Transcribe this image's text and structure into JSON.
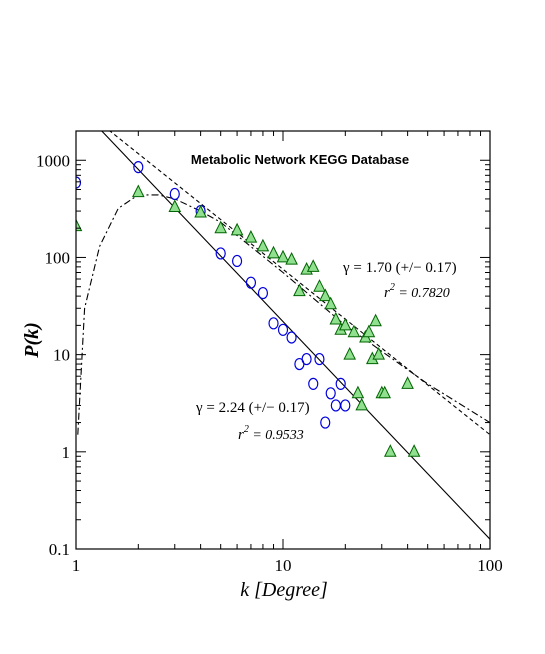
{
  "chart_data": {
    "type": "scatter",
    "title": "Metabolic Network KEGG Database",
    "xlabel": "k [Degree]",
    "ylabel": "P(k)",
    "xscale": "log",
    "yscale": "log",
    "xlim": [
      1,
      100
    ],
    "ylim": [
      0.1,
      2000
    ],
    "x_ticks": [
      {
        "value": 1,
        "label": "1"
      },
      {
        "value": 10,
        "label": "10"
      },
      {
        "value": 100,
        "label": "100"
      }
    ],
    "y_ticks": [
      {
        "value": 0.1,
        "label": "0.1"
      },
      {
        "value": 1,
        "label": "1"
      },
      {
        "value": 10,
        "label": "10"
      },
      {
        "value": 100,
        "label": "100"
      },
      {
        "value": 1000,
        "label": "1000"
      }
    ],
    "grid": false,
    "colors": {
      "circles": "#0000dd",
      "triangles_fill": "#90e090",
      "triangles_stroke": "#006400",
      "lines": "#000000"
    },
    "series": [
      {
        "marker": "circle",
        "points": [
          [
            1,
            590
          ],
          [
            2,
            850
          ],
          [
            3,
            450
          ],
          [
            4,
            300
          ],
          [
            5,
            110
          ],
          [
            6,
            92
          ],
          [
            7,
            55
          ],
          [
            8,
            43
          ],
          [
            9,
            21
          ],
          [
            10,
            18
          ],
          [
            11,
            15
          ],
          [
            12,
            8
          ],
          [
            13,
            9
          ],
          [
            14,
            5
          ],
          [
            15,
            9
          ],
          [
            16,
            2
          ],
          [
            17,
            4
          ],
          [
            18,
            3
          ],
          [
            19,
            5
          ],
          [
            20,
            3
          ]
        ]
      },
      {
        "marker": "triangle",
        "points": [
          [
            1,
            210
          ],
          [
            2,
            470
          ],
          [
            3,
            330
          ],
          [
            4,
            290
          ],
          [
            5,
            200
          ],
          [
            6,
            190
          ],
          [
            7,
            160
          ],
          [
            8,
            130
          ],
          [
            9,
            110
          ],
          [
            10,
            100
          ],
          [
            11,
            95
          ],
          [
            12,
            45
          ],
          [
            13,
            75
          ],
          [
            14,
            80
          ],
          [
            15,
            50
          ],
          [
            16,
            40
          ],
          [
            17,
            33
          ],
          [
            18,
            23
          ],
          [
            19,
            18
          ],
          [
            20,
            20
          ],
          [
            21,
            10
          ],
          [
            22,
            17
          ],
          [
            23,
            4
          ],
          [
            24,
            3
          ],
          [
            25,
            15
          ],
          [
            26,
            17
          ],
          [
            27,
            9
          ],
          [
            28,
            22
          ],
          [
            29,
            10
          ],
          [
            30,
            4
          ],
          [
            31,
            4
          ],
          [
            33,
            1
          ],
          [
            40,
            5
          ],
          [
            43,
            1
          ]
        ]
      }
    ],
    "fit_lines": [
      {
        "style": "solid",
        "gamma": 2.24,
        "points": [
          [
            1,
            3800
          ],
          [
            100,
            0.126
          ]
        ]
      },
      {
        "style": "dashed",
        "gamma": 1.7,
        "points": [
          [
            1,
            3800
          ],
          [
            100,
            1.5
          ]
        ]
      },
      {
        "style": "dashdot",
        "points": [
          [
            1.02,
            1.5
          ],
          [
            1.1,
            30
          ],
          [
            1.3,
            130
          ],
          [
            1.6,
            320
          ],
          [
            2,
            440
          ],
          [
            2.5,
            440
          ],
          [
            3,
            400
          ],
          [
            4,
            300
          ],
          [
            5,
            230
          ],
          [
            10,
            70
          ],
          [
            20,
            20
          ],
          [
            50,
            5
          ],
          [
            100,
            2
          ]
        ]
      }
    ],
    "annotations": [
      {
        "gamma_text": "γ = 1.70 (+/− 0.17)",
        "r2_label": "r",
        "r2_sup": "2",
        "r2_value": " = 0.7820"
      },
      {
        "gamma_text": "γ = 2.24 (+/− 0.17)",
        "r2_label": "r",
        "r2_sup": "2",
        "r2_value": " = 0.9533"
      }
    ]
  }
}
